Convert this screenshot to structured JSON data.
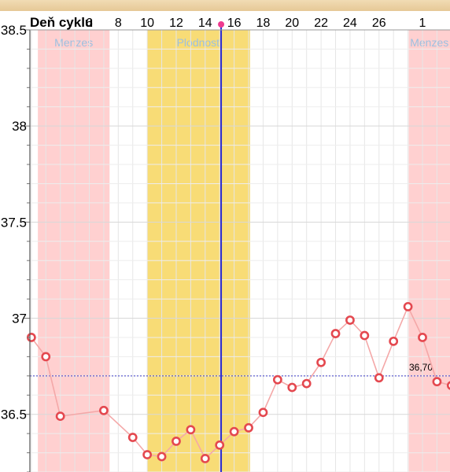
{
  "header": {
    "title": "Deň cyklu"
  },
  "chart_data": {
    "type": "line",
    "xlabel": "Deň cyklu",
    "x_tick_labels": [
      {
        "day": 6,
        "label": "6"
      },
      {
        "day": 8,
        "label": "8"
      },
      {
        "day": 10,
        "label": "10"
      },
      {
        "day": 12,
        "label": "12"
      },
      {
        "day": 14,
        "label": "14"
      },
      {
        "day": 16,
        "label": "16"
      },
      {
        "day": 18,
        "label": "18"
      },
      {
        "day": 20,
        "label": "20"
      },
      {
        "day": 22,
        "label": "22"
      },
      {
        "day": 24,
        "label": "24"
      },
      {
        "day": 26,
        "label": "26"
      },
      {
        "day": 29,
        "label": "1"
      }
    ],
    "xlim": [
      1.9,
      30.9
    ],
    "ylim": [
      36.2,
      38.5
    ],
    "y_tick_labels": [
      "38.5",
      "38",
      "37.5",
      "37",
      "36.5"
    ],
    "y_ticks": [
      38.5,
      38.0,
      37.5,
      37.0,
      36.5
    ],
    "grid": true,
    "bands": [
      {
        "label": "Menzes",
        "start": 2.45,
        "end": 7.4,
        "color": "#ffd0d0"
      },
      {
        "label": "Plodnosť",
        "start": 10.0,
        "end": 17.1,
        "color": "#f8dc76"
      },
      {
        "label": "Menzes",
        "start": 28.05,
        "end": 31.0,
        "color": "#ffd0d0"
      }
    ],
    "current_day": 15.1,
    "coverline": {
      "value": 36.7,
      "label": "36,70"
    },
    "series": [
      {
        "points": [
          {
            "x": 2,
            "y": 36.9
          },
          {
            "x": 3,
            "y": 36.8
          },
          {
            "x": 4,
            "y": 36.49
          },
          {
            "x": 7,
            "y": 36.52
          },
          {
            "x": 9,
            "y": 36.38
          },
          {
            "x": 10,
            "y": 36.29
          },
          {
            "x": 11,
            "y": 36.28
          },
          {
            "x": 12,
            "y": 36.36
          },
          {
            "x": 13,
            "y": 36.42
          },
          {
            "x": 14,
            "y": 36.27
          },
          {
            "x": 15,
            "y": 36.34
          },
          {
            "x": 16,
            "y": 36.41
          },
          {
            "x": 17,
            "y": 36.43
          },
          {
            "x": 18,
            "y": 36.51
          },
          {
            "x": 19,
            "y": 36.68
          },
          {
            "x": 20,
            "y": 36.64
          },
          {
            "x": 21,
            "y": 36.66
          },
          {
            "x": 22,
            "y": 36.77
          },
          {
            "x": 23,
            "y": 36.92
          },
          {
            "x": 24,
            "y": 36.99
          },
          {
            "x": 25,
            "y": 36.91
          },
          {
            "x": 26,
            "y": 36.69
          },
          {
            "x": 27,
            "y": 36.88
          },
          {
            "x": 28,
            "y": 37.06
          },
          {
            "x": 29,
            "y": 36.9
          },
          {
            "x": 30,
            "y": 36.67
          },
          {
            "x": 31,
            "y": 36.65
          }
        ],
        "line_color": "#f4a8a8",
        "marker_color": "#e4484f"
      }
    ]
  }
}
